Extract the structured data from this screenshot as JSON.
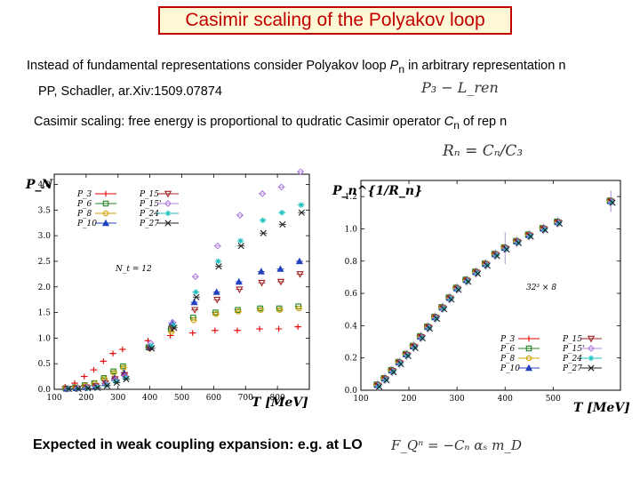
{
  "slide": {
    "title": "Casimir scaling of the Polyakov loop",
    "line1_a": "Instead of fundamental representations consider Polyakov loop ",
    "line1_var": "P",
    "line1_sub": "n",
    "line1_b": " in arbitrary representation n",
    "line2": "PP, Schadler, ar.Xiv:1509.07874",
    "line3_a": "Casimir scaling: free energy is proportional to qudratic Casimir operator ",
    "line3_var": "C",
    "line3_sub": "n",
    "line3_b": " of rep n",
    "line4": "Expected in weak coupling expansion: e.g. at LO",
    "formula1": "P₃ − L_ren",
    "formula2": "Rₙ = Cₙ/C₃",
    "formula3": "F_Qⁿ = −Cₙ αₛ m_D"
  },
  "colors": {
    "title_border": "#c00000",
    "title_text": "#c00000",
    "title_bg": "#fff8d6",
    "P3": "#e00000",
    "P6": "#208020",
    "P8": "#d0a000",
    "P10": "#2040c0",
    "P15": "#a02020",
    "P15b": "#b080e0",
    "P24": "#20c0c0",
    "P27": "#202020"
  },
  "chart_data": [
    {
      "type": "scatter",
      "title": "",
      "ylabel": "P_N",
      "xlabel": "T [MeV]",
      "xlim": [
        100,
        900
      ],
      "ylim": [
        0,
        4.2
      ],
      "xticks": [
        100,
        200,
        300,
        400,
        500,
        600,
        700,
        800
      ],
      "yticks": [
        0.0,
        0.5,
        1.0,
        1.5,
        2.0,
        2.5,
        3.0,
        3.5,
        4.0
      ],
      "xtick_labels": [
        "100",
        "200",
        "300",
        "400",
        "500",
        "600",
        "700",
        "800"
      ],
      "ytick_labels": [
        "0.0",
        "0.5",
        "1.0",
        "1.5",
        "2.0",
        "2.5",
        "3.0",
        "3.5",
        "4.0"
      ],
      "annotation": "N_t = 12",
      "legend": [
        "P_3",
        "P_6",
        "P_8",
        "P_10",
        "P_15",
        "P_15'",
        "P_24",
        "P_27"
      ],
      "x": [
        140,
        170,
        200,
        230,
        260,
        290,
        320,
        400,
        470,
        540,
        610,
        680,
        750,
        810,
        870
      ],
      "series": [
        {
          "name": "P_3",
          "values": [
            0.05,
            0.12,
            0.25,
            0.38,
            0.55,
            0.7,
            0.78,
            0.95,
            1.05,
            1.1,
            1.15,
            1.15,
            1.18,
            1.18,
            1.22
          ]
        },
        {
          "name": "P_6",
          "values": [
            0.02,
            0.04,
            0.08,
            0.12,
            0.22,
            0.35,
            0.45,
            0.82,
            1.18,
            1.4,
            1.5,
            1.55,
            1.58,
            1.58,
            1.62
          ]
        },
        {
          "name": "P_8",
          "values": [
            0.02,
            0.04,
            0.07,
            0.11,
            0.2,
            0.32,
            0.42,
            0.8,
            1.12,
            1.35,
            1.47,
            1.52,
            1.55,
            1.55,
            1.58
          ]
        },
        {
          "name": "P_10",
          "values": [
            0.01,
            0.02,
            0.04,
            0.06,
            0.12,
            0.22,
            0.32,
            0.82,
            1.3,
            1.7,
            1.9,
            2.1,
            2.3,
            2.35,
            2.5
          ]
        },
        {
          "name": "P_15",
          "values": [
            0.01,
            0.02,
            0.04,
            0.06,
            0.12,
            0.2,
            0.28,
            0.8,
            1.2,
            1.55,
            1.75,
            1.95,
            2.08,
            2.1,
            2.25
          ]
        },
        {
          "name": "P_15'",
          "values": [
            0.01,
            0.02,
            0.03,
            0.05,
            0.1,
            0.18,
            0.25,
            0.9,
            1.3,
            2.2,
            2.8,
            3.4,
            3.82,
            3.95,
            4.25
          ]
        },
        {
          "name": "P_24",
          "values": [
            0.01,
            0.01,
            0.02,
            0.04,
            0.08,
            0.15,
            0.22,
            0.85,
            1.25,
            1.9,
            2.5,
            2.9,
            3.3,
            3.45,
            3.6
          ]
        },
        {
          "name": "P_27",
          "values": [
            0.01,
            0.01,
            0.02,
            0.03,
            0.07,
            0.13,
            0.2,
            0.8,
            1.2,
            1.8,
            2.4,
            2.8,
            3.05,
            3.22,
            3.45
          ]
        }
      ]
    },
    {
      "type": "scatter",
      "title": "",
      "ylabel": "P_n^{1/R_n}",
      "xlabel": "T [MeV]",
      "xlim": [
        100,
        640
      ],
      "ylim": [
        0,
        1.3
      ],
      "xticks": [
        100,
        200,
        300,
        400,
        500
      ],
      "yticks": [
        0.0,
        0.2,
        0.4,
        0.6,
        0.8,
        1.0,
        1.2
      ],
      "xtick_labels": [
        "100",
        "200",
        "300",
        "400",
        "500"
      ],
      "ytick_labels": [
        "0.0",
        "0.2",
        "0.4",
        "0.6",
        "0.8",
        "1.0",
        "1.2"
      ],
      "annotation": "32³ × 8",
      "legend": [
        "P_3",
        "P_6",
        "P_8",
        "P_10",
        "P_15",
        "P_15'",
        "P_24",
        "P_27"
      ],
      "x": [
        135,
        150,
        165,
        180,
        195,
        210,
        225,
        240,
        255,
        270,
        285,
        300,
        320,
        340,
        360,
        380,
        400,
        425,
        450,
        480,
        510,
        620
      ],
      "values": [
        0.03,
        0.07,
        0.12,
        0.17,
        0.22,
        0.27,
        0.33,
        0.39,
        0.45,
        0.51,
        0.57,
        0.63,
        0.68,
        0.73,
        0.78,
        0.84,
        0.88,
        0.92,
        0.96,
        1.0,
        1.04,
        1.17
      ]
    }
  ]
}
